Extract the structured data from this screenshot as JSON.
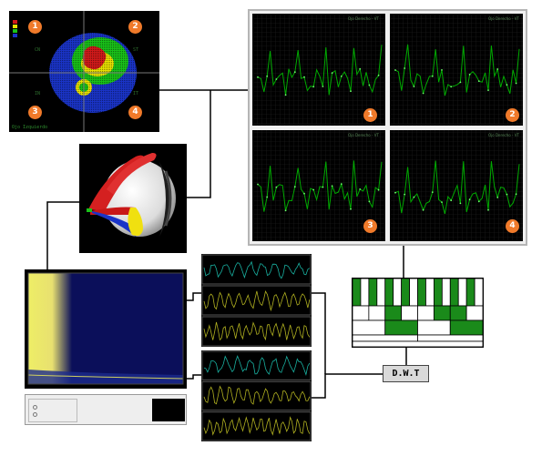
{
  "topo": {
    "badges": [
      "1",
      "2",
      "3",
      "4"
    ],
    "quadrant_labels": [
      "CN",
      "ST",
      "IN",
      "IT"
    ],
    "caption": "Ojo Izquierdo",
    "scale_colors": [
      "#d21a1a",
      "#e8e000",
      "#19c219",
      "#1a34c8"
    ]
  },
  "signal_grid": {
    "titles": [
      "Ojo Derecho - VT",
      "Ojo Derecho - VT",
      "Ojo Derecho - VT",
      "Ojo Derecho - VT"
    ],
    "badges": [
      "1",
      "2",
      "3",
      "4"
    ]
  },
  "dwt": {
    "label": "D.W.T"
  },
  "colors": {
    "grid_line": "#00aa00",
    "badge": "#f07a2a",
    "teal_wave": "#19b0a0",
    "yellow_wave": "#b0b020",
    "dwt_green": "#1a8a1a"
  }
}
